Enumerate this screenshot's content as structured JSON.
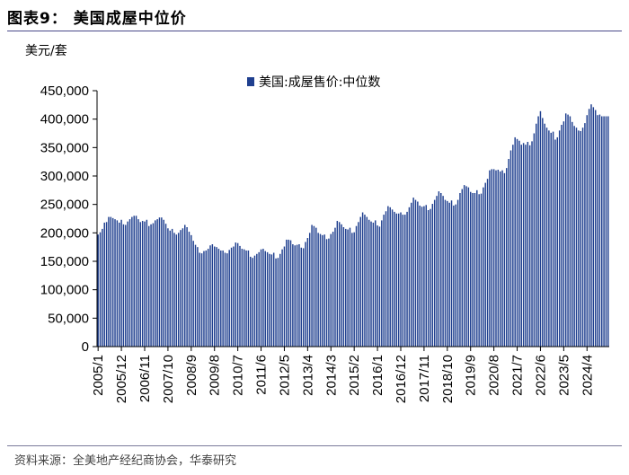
{
  "header": {
    "title": "图表9：   美国成屋中位价",
    "unit": "美元/套"
  },
  "footer": {
    "source": "资料来源：全美地产经纪商协会，华泰研究"
  },
  "colors": {
    "bar": "#1f3f8f",
    "axis": "#000000"
  },
  "chart_data": {
    "type": "bar",
    "title": "",
    "xlabel": "",
    "ylabel": "美元/套",
    "ylim": [
      0,
      450000
    ],
    "yticks": [
      "0",
      "50,000",
      "100,000",
      "150,000",
      "200,000",
      "250,000",
      "300,000",
      "350,000",
      "400,000",
      "450,000"
    ],
    "ytick_values": [
      0,
      50000,
      100000,
      150000,
      200000,
      250000,
      300000,
      350000,
      400000,
      450000
    ],
    "x_start": "2005/1",
    "x_end": "2025/3",
    "xticks": [
      "2005/1",
      "2005/12",
      "2006/11",
      "2007/10",
      "2008/9",
      "2009/8",
      "2010/7",
      "2011/6",
      "2012/5",
      "2013/4",
      "2014/3",
      "2015/2",
      "2016/1",
      "2016/12",
      "2017/11",
      "2018/10",
      "2019/9",
      "2020/8",
      "2021/7",
      "2022/6",
      "2023/5",
      "2024/4"
    ],
    "legend": "top-center",
    "grid": false,
    "series": [
      {
        "name": "美国:成屋售价:中位数",
        "values": [
          197000,
          201000,
          207000,
          218000,
          219000,
          228000,
          228000,
          226000,
          224000,
          222000,
          218000,
          223000,
          215000,
          214000,
          220000,
          224000,
          228000,
          230000,
          230000,
          224000,
          219000,
          221000,
          220000,
          223000,
          212000,
          215000,
          217000,
          222000,
          224000,
          227000,
          227000,
          223000,
          216000,
          208000,
          204000,
          207000,
          200000,
          197000,
          200000,
          205000,
          208000,
          214000,
          210000,
          202000,
          196000,
          186000,
          179000,
          175000,
          165000,
          164000,
          168000,
          169000,
          172000,
          178000,
          180000,
          176000,
          175000,
          172000,
          169000,
          169000,
          165000,
          164000,
          170000,
          174000,
          176000,
          183000,
          182000,
          177000,
          172000,
          171000,
          169000,
          169000,
          158000,
          156000,
          160000,
          163000,
          166000,
          171000,
          172000,
          168000,
          166000,
          163000,
          162000,
          165000,
          155000,
          156000,
          163000,
          171000,
          176000,
          188000,
          188000,
          187000,
          180000,
          178000,
          179000,
          180000,
          174000,
          173000,
          184000,
          191000,
          200000,
          214000,
          212000,
          209000,
          200000,
          198000,
          196000,
          197000,
          189000,
          190000,
          198000,
          202000,
          209000,
          221000,
          219000,
          215000,
          210000,
          207000,
          206000,
          209000,
          200000,
          201000,
          212000,
          219000,
          228000,
          236000,
          232000,
          228000,
          223000,
          220000,
          218000,
          222000,
          213000,
          211000,
          222000,
          232000,
          238000,
          247000,
          245000,
          241000,
          237000,
          234000,
          234000,
          236000,
          232000,
          232000,
          237000,
          245000,
          253000,
          262000,
          258000,
          255000,
          248000,
          246000,
          247000,
          249000,
          240000,
          242000,
          251000,
          258000,
          265000,
          273000,
          270000,
          265000,
          258000,
          256000,
          253000,
          257000,
          248000,
          250000,
          258000,
          270000,
          277000,
          284000,
          282000,
          280000,
          272000,
          270000,
          270000,
          275000,
          268000,
          269000,
          280000,
          288000,
          295000,
          310000,
          312000,
          312000,
          310000,
          311000,
          308000,
          310000,
          305000,
          314000,
          330000,
          345000,
          355000,
          368000,
          365000,
          362000,
          355000,
          358000,
          355000,
          360000,
          354000,
          361000,
          375000,
          392000,
          405000,
          414000,
          402000,
          392000,
          385000,
          380000,
          376000,
          378000,
          364000,
          368000,
          380000,
          390000,
          396000,
          410000,
          408000,
          405000,
          395000,
          388000,
          385000,
          380000,
          379000,
          385000,
          393000,
          407000,
          418000,
          426000,
          421000,
          416000,
          407000,
          408000,
          405000,
          405000,
          405000,
          405000
        ]
      }
    ]
  }
}
